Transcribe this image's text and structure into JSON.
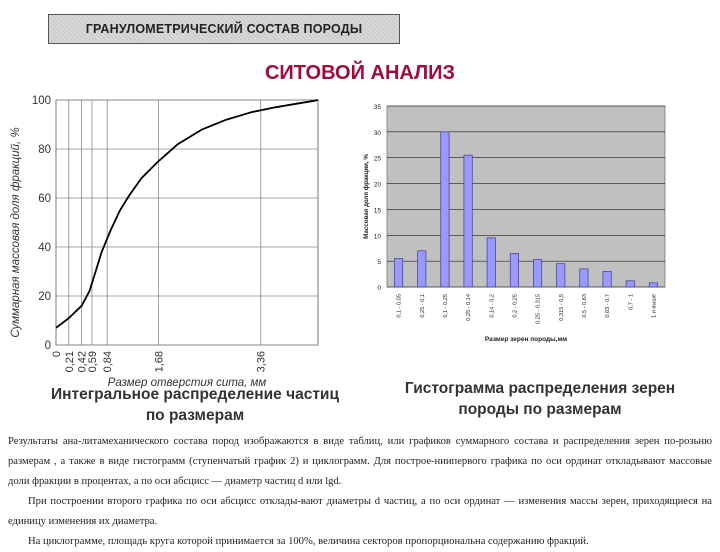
{
  "header": {
    "title": "ГРАНУЛОМЕТРИЧЕСКИЙ СОСТАВ ПОРОДЫ",
    "heading": "СИТОВОЙ АНАЛИЗ"
  },
  "captions": {
    "left": "Интегральное распределение частиц по размерам",
    "right": "Гистограмма распределения зерен породы по размерам"
  },
  "body_text": [
    "Результаты ана-литамеханического состава пород изображаются в виде таблиц, или графиков суммарного состава и распределения зерен по-розьню размерам , а также в виде гистограмм (ступенчатый график 2) и циклограмм. Для построе-ниипервого графика по оси ординат откладывают массовые доли фракции в процентах, а по оси абсцисс — диаметр частиц d или lgd.",
    "При построении второго графика по оси абсцисс отклады-вают диаметры d частиц, а по оси ординат — изменения массы зерен, приходящиеся на единицу изменения их диаметра.",
    "На циклограмме, площадь круга которой принимается за 100%, величина секторов пропорциональна содержанию фракций."
  ],
  "chart_data": [
    {
      "type": "line",
      "title": "",
      "xlabel": "Размер отверстия сита, мм",
      "ylabel": "Суммарная массовая доля фракций, %",
      "x_ticks": [
        "0",
        "0,21",
        "0,42",
        "0,59",
        "0,84",
        "1,68",
        "3,36"
      ],
      "x_tick_values": [
        0,
        0.21,
        0.42,
        0.59,
        0.84,
        1.68,
        3.36
      ],
      "y_ticks": [
        "0",
        "20",
        "40",
        "60",
        "80",
        "100"
      ],
      "xlim": [
        0,
        4.3
      ],
      "ylim": [
        0,
        100
      ],
      "grid": true,
      "color": "#000000",
      "series": [
        {
          "x": [
            0,
            0.21,
            0.42,
            0.55,
            0.75,
            0.9,
            1.05,
            1.2,
            1.4,
            1.68,
            2.0,
            2.4,
            2.8,
            3.2,
            3.6,
            3.95,
            4.2,
            4.3
          ],
          "values": [
            7,
            11,
            16,
            22,
            38,
            47,
            55,
            61,
            68,
            75,
            82,
            88,
            92,
            95,
            97,
            98.5,
            99.5,
            100
          ]
        }
      ]
    },
    {
      "type": "bar",
      "title": "",
      "xlabel": "Размер зерен породы,мм",
      "ylabel": "Массовая доля фракции, %",
      "categories": [
        "0,1 - 0,05",
        "0,25 - 0,1",
        "0,1 - 0,25",
        "0,25 - 0,14",
        "0,14 - 0,2",
        "0,2 - 0,25",
        "0,25 - 0,315",
        "0,315 - 0,5",
        "0,5 - 0,63",
        "0,63 - 0,7",
        "0,7 - 1",
        "1 и выше"
      ],
      "values": [
        5.5,
        7,
        30,
        25.5,
        9.5,
        6.5,
        5.3,
        4.5,
        3.5,
        3,
        1.2,
        0.8
      ],
      "y_ticks": [
        "0",
        "5",
        "10",
        "15",
        "20",
        "25",
        "30",
        "35"
      ],
      "ylim": [
        0,
        35
      ],
      "grid": true,
      "bar_color": "#9999ff",
      "plot_bg": "#c0c0c0"
    }
  ]
}
